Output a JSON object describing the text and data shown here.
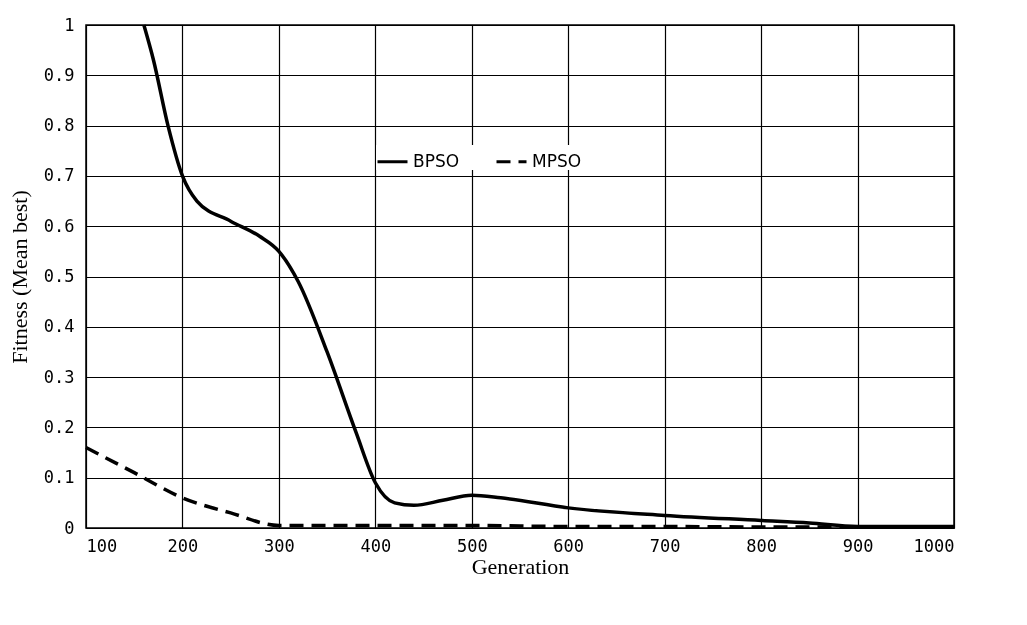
{
  "chart_data": {
    "type": "line",
    "xlabel": "Generation",
    "ylabel": "Fitness (Mean best)",
    "xlim": [
      100,
      1000
    ],
    "xticks": [
      100,
      200,
      300,
      400,
      500,
      600,
      700,
      800,
      900,
      1000
    ],
    "ylim": [
      0,
      1
    ],
    "yticks": [
      0,
      {
        "value": 0.1,
        "label": "0.1"
      },
      {
        "value": 0.2,
        "label": "0.2"
      },
      {
        "value": 0.3,
        "label": "0.3"
      },
      {
        "value": 0.4,
        "label": "0.4"
      },
      {
        "value": 0.5,
        "label": "0.5"
      },
      {
        "value": 0.6,
        "label": "0.6"
      },
      {
        "value": 0.7,
        "label": "0.7"
      },
      {
        "value": 0.8,
        "label": "0.8"
      },
      {
        "value": 0.9,
        "label": "0.9"
      },
      1
    ],
    "grid": true,
    "legend": "top",
    "marker": "none",
    "series": [
      {
        "name": "BPSO",
        "color": "#000000",
        "line_style": "solid",
        "x": [
          160,
          170,
          185,
          200,
          215,
          250,
          280,
          300,
          320,
          350,
          380,
          400,
          420,
          440,
          470,
          500,
          530,
          600,
          700,
          800,
          850,
          900,
          1000
        ],
        "values": [
          1,
          0.93,
          0.8,
          0.7,
          0.65,
          0.61,
          0.58,
          0.55,
          0.49,
          0.35,
          0.19,
          0.09,
          0.05,
          0.045,
          0.055,
          0.065,
          0.06,
          0.04,
          0.025,
          0.015,
          0.01,
          0.003,
          0.003
        ]
      },
      {
        "name": "MPSO",
        "color": "#000000",
        "line_style": "dashed",
        "x": [
          100,
          150,
          200,
          250,
          300,
          400,
          500,
          600,
          700,
          800,
          1000
        ],
        "values": [
          0.16,
          0.11,
          0.06,
          0.03,
          0.005,
          0.005,
          0.005,
          0.003,
          0.003,
          0.002,
          0.002
        ]
      }
    ]
  }
}
